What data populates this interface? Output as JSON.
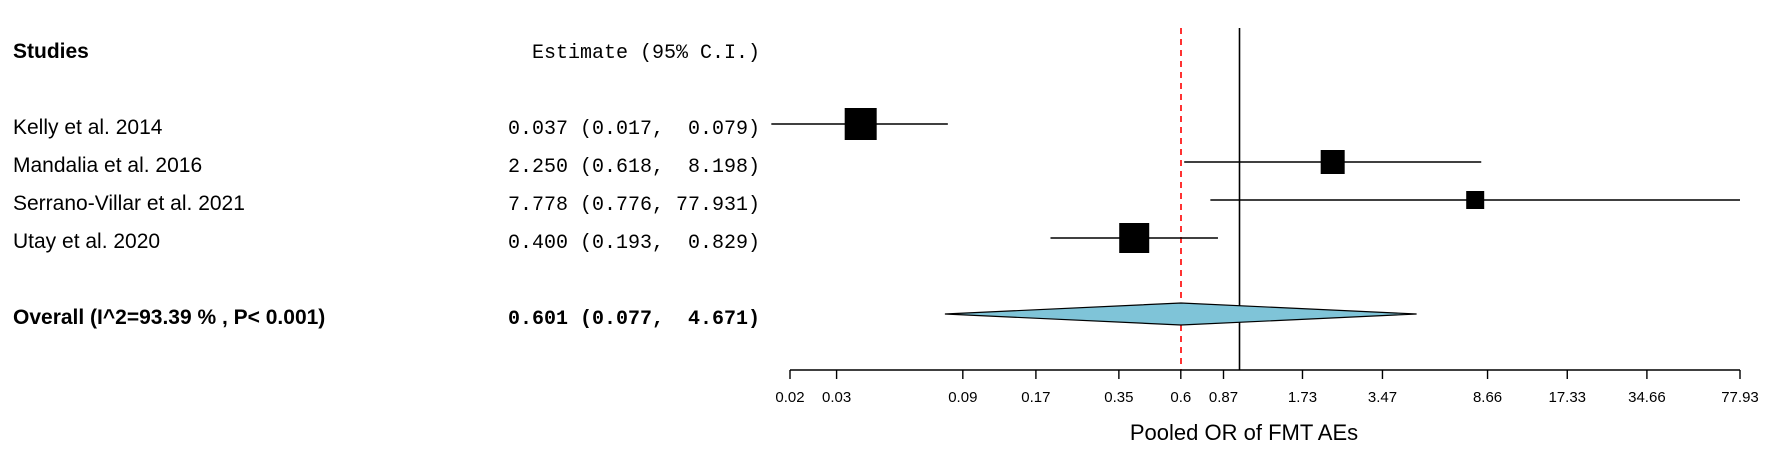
{
  "chart_data": {
    "type": "forest",
    "header": {
      "studies_label": "Studies",
      "estimate_label": "Estimate (95% C.I.)"
    },
    "studies": [
      {
        "name": "Kelly et al. 2014",
        "estimate_text": "0.037 (0.017,  0.079)",
        "estimate": 0.037,
        "lower": 0.017,
        "upper": 0.079
      },
      {
        "name": "Mandalia et al. 2016",
        "estimate_text": "2.250 (0.618,  8.198)",
        "estimate": 2.25,
        "lower": 0.618,
        "upper": 8.198
      },
      {
        "name": "Serrano-Villar et al. 2021",
        "estimate_text": "7.778 (0.776, 77.931)",
        "estimate": 7.778,
        "lower": 0.776,
        "upper": 77.931
      },
      {
        "name": "Utay et al. 2020",
        "estimate_text": "0.400 (0.193,  0.829)",
        "estimate": 0.4,
        "lower": 0.193,
        "upper": 0.829
      }
    ],
    "overall": {
      "label": "Overall (I^2=93.39 % , P< 0.001)",
      "estimate_text": "0.601 (0.077,  4.671)",
      "estimate": 0.601,
      "lower": 0.077,
      "upper": 4.671
    },
    "x_axis": {
      "label": "Pooled OR of FMT AEs",
      "scale": "log",
      "range": [
        0.02,
        77.93
      ],
      "ticks": [
        0.02,
        0.03,
        0.09,
        0.17,
        0.35,
        0.6,
        0.87,
        1.73,
        3.47,
        8.66,
        17.33,
        34.66,
        77.93
      ],
      "tick_labels": [
        "0.02",
        "0.03",
        "0.09",
        "0.17",
        "0.35",
        "0.6",
        "0.87",
        "1.73",
        "3.47",
        "8.66",
        "17.33",
        "34.66",
        "77.93"
      ]
    },
    "null_line": 1,
    "pooled_line": 0.601,
    "colors": {
      "diamond_fill": "#7fc4d8",
      "pooled_line": "#ff0000",
      "marks": "#000000"
    }
  }
}
